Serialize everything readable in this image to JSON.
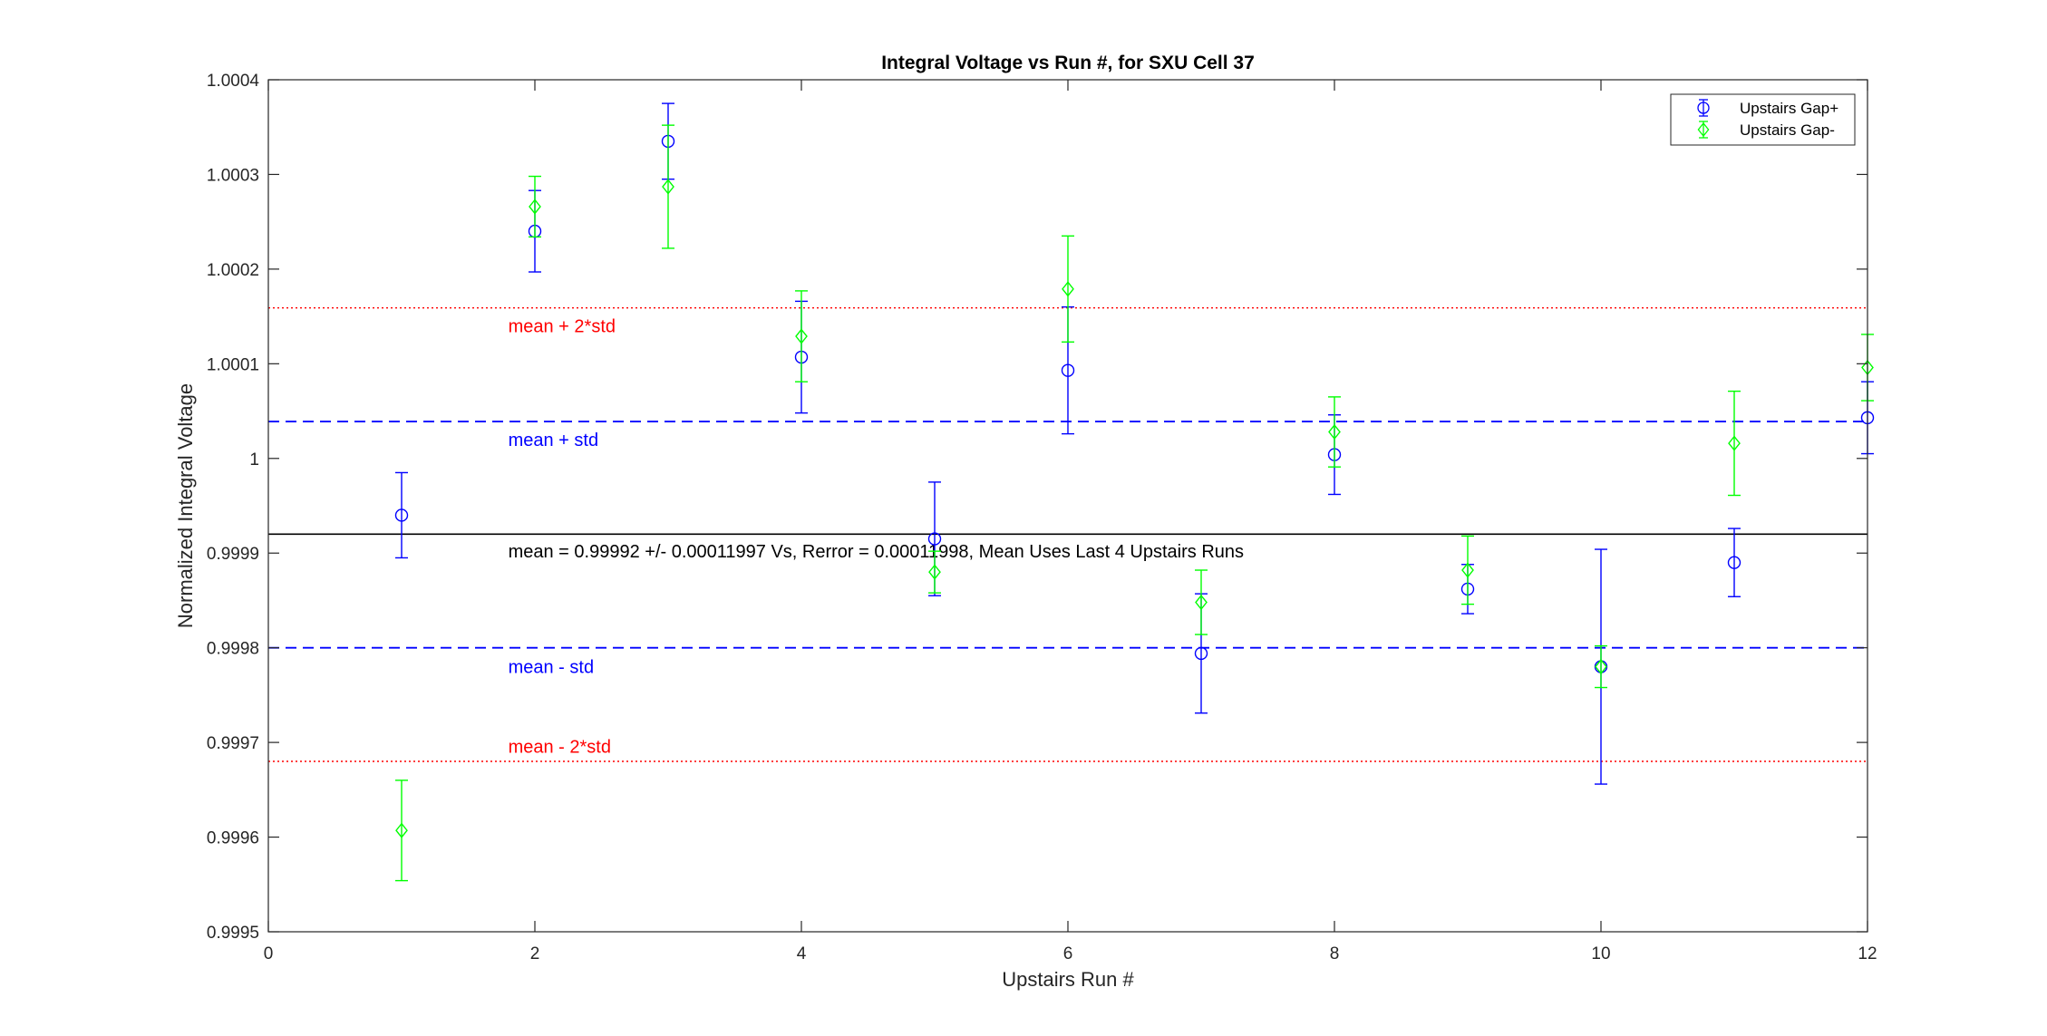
{
  "chart_data": {
    "type": "scatter",
    "title": "Integral Voltage vs Run #, for SXU Cell 37",
    "xlabel": "Upstairs Run #",
    "ylabel": "Normalized Integral Voltage",
    "xlim": [
      0,
      12
    ],
    "ylim": [
      0.9995,
      1.0004
    ],
    "x_ticks": [
      0,
      2,
      4,
      6,
      8,
      10,
      12
    ],
    "x_tick_labels": [
      "0",
      "2",
      "4",
      "6",
      "8",
      "10",
      "12"
    ],
    "y_ticks": [
      0.9995,
      0.9996,
      0.9997,
      0.9998,
      0.9999,
      1.0,
      1.0001,
      1.0002,
      1.0003,
      1.0004
    ],
    "y_tick_labels": [
      "0.9995",
      "0.9996",
      "0.9997",
      "0.9998",
      "0.9999",
      "1",
      "1.0001",
      "1.0002",
      "1.0003",
      "1.0004"
    ],
    "grid": false,
    "legend_position": "top-right",
    "series": [
      {
        "name": "Upstairs Gap+",
        "color": "#0000ff",
        "marker": "circle",
        "x": [
          1,
          2,
          3,
          4,
          5,
          6,
          7,
          8,
          9,
          10,
          11,
          12
        ],
        "y": [
          0.99994,
          1.00024,
          1.000335,
          1.000107,
          0.999915,
          1.000093,
          0.999794,
          1.000004,
          0.999862,
          0.99978,
          0.99989,
          1.000043
        ],
        "err": [
          4.5e-05,
          4.3e-05,
          4e-05,
          5.9e-05,
          6e-05,
          6.7e-05,
          6.3e-05,
          4.2e-05,
          2.6e-05,
          0.000124,
          3.6e-05,
          3.8e-05
        ]
      },
      {
        "name": "Upstairs Gap-",
        "color": "#00ff00",
        "marker": "diamond",
        "x": [
          1,
          2,
          3,
          4,
          5,
          6,
          7,
          8,
          9,
          10,
          11,
          12
        ],
        "y": [
          0.999607,
          1.000266,
          1.000287,
          1.000129,
          0.99988,
          1.000179,
          0.999848,
          1.000028,
          0.999882,
          0.99978,
          1.000016,
          1.000096
        ],
        "err": [
          5.3e-05,
          3.2e-05,
          6.5e-05,
          4.8e-05,
          2.2e-05,
          5.6e-05,
          3.4e-05,
          3.7e-05,
          3.6e-05,
          2.2e-05,
          5.5e-05,
          3.5e-05
        ]
      }
    ],
    "reference_lines": [
      {
        "name": "mean + 2*std",
        "y": 1.000159,
        "style": "dotted",
        "color": "#ff0000",
        "label": "mean + 2*std",
        "label_x": 1.8,
        "label_y": 1.00014
      },
      {
        "name": "mean + std",
        "y": 1.000039,
        "style": "dashed",
        "color": "#0000ff",
        "label": "mean + std",
        "label_x": 1.8,
        "label_y": 1.00002
      },
      {
        "name": "mean",
        "y": 0.99992,
        "style": "solid",
        "color": "#000000",
        "label": "mean = 0.99992 +/- 0.00011997 Vs, Rerror = 0.00011998, Mean Uses Last 4 Upstairs Runs",
        "label_x": 1.8,
        "label_y": 0.999902
      },
      {
        "name": "mean - std",
        "y": 0.9998,
        "style": "dashed",
        "color": "#0000ff",
        "label": "mean - std",
        "label_x": 1.8,
        "label_y": 0.99978
      },
      {
        "name": "mean - 2*std",
        "y": 0.99968,
        "style": "dotted",
        "color": "#ff0000",
        "label": "mean - 2*std",
        "label_x": 1.8,
        "label_y": 0.999696
      }
    ]
  }
}
